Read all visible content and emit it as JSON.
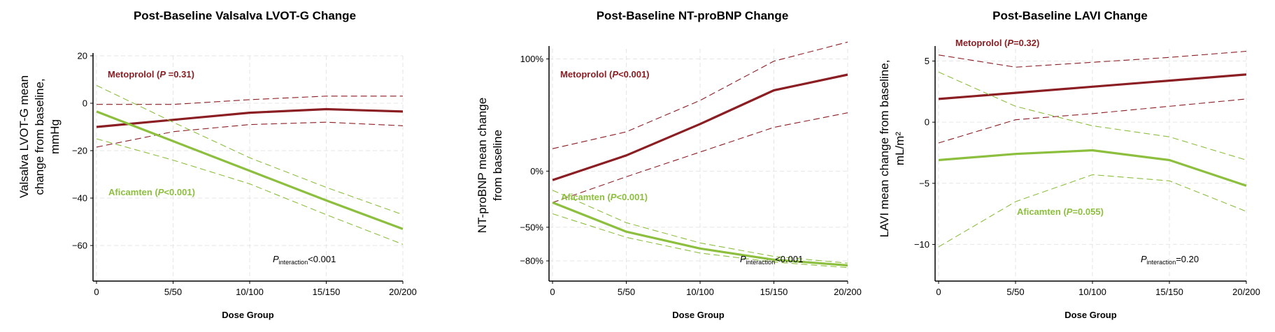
{
  "colors": {
    "metoprolol": "#8B1E23",
    "aficamten": "#8DBF3F"
  },
  "chart_data": [
    {
      "type": "line",
      "title": "Post-Baseline Valsalva LVOT-G Change",
      "ylabel_lines": [
        "Valsalva LVOT-G mean",
        "change from baseline,",
        "mmHg"
      ],
      "xlabel": "Dose Group",
      "categories": [
        "0",
        "5/50",
        "10/100",
        "15/150",
        "20/200"
      ],
      "ylim": [
        -75,
        20
      ],
      "yticks": [
        20,
        0,
        -20,
        -40,
        -60
      ],
      "ytick_labels": [
        "20",
        "0",
        "−20",
        "−40",
        "−60"
      ],
      "grid": true,
      "series": [
        {
          "name": "Metoprolol",
          "color": "#8B1E23",
          "label_prefix": "Metoprolol (",
          "label_p": "P",
          "label_suffix": " =0.31)",
          "values": [
            -10,
            -7,
            -4,
            -2.5,
            -3.5
          ],
          "ci_low": [
            -18.5,
            -12,
            -9,
            -8,
            -9.5
          ],
          "ci_high": [
            -0.5,
            -0.5,
            1.5,
            3,
            3
          ]
        },
        {
          "name": "Aficamten",
          "color": "#8DBF3F",
          "label_prefix": "Aficamten (",
          "label_p": "P",
          "label_suffix": "<0.001)",
          "values": [
            -3.5,
            -16,
            -28.5,
            -41,
            -53
          ],
          "ci_low": [
            -15,
            -24,
            -34,
            -47,
            -59.5
          ],
          "ci_high": [
            7.5,
            -8,
            -23,
            -35.5,
            -47
          ]
        }
      ],
      "p_interaction_label": "P",
      "p_interaction_sub": "interaction",
      "p_interaction_value": "<0.001"
    },
    {
      "type": "line",
      "title": "Post-Baseline NT-proBNP Change",
      "ylabel_lines": [
        "NT-proBNP mean change",
        "from baseline"
      ],
      "xlabel": "Dose Group",
      "categories": [
        "0",
        "5/50",
        "10/100",
        "15/150",
        "20/200"
      ],
      "ylim": [
        -98,
        109
      ],
      "yticks": [
        100,
        0,
        -50,
        -80
      ],
      "ytick_labels": [
        "100%",
        "0%",
        "−50%",
        "−80%"
      ],
      "grid": true,
      "series": [
        {
          "name": "Metoprolol",
          "color": "#8B1E23",
          "label_prefix": "Metoprolol (",
          "label_p": "P",
          "label_suffix": "<0.001)",
          "values": [
            -8,
            14,
            42,
            72,
            86
          ],
          "ci_low": [
            -28,
            -5,
            17,
            39,
            52
          ],
          "ci_high": [
            20,
            35,
            63,
            98,
            115
          ]
        },
        {
          "name": "Aficamten",
          "color": "#8DBF3F",
          "label_prefix": "Aficamten (",
          "label_p": "P",
          "label_suffix": "<0.001)",
          "values": [
            -28,
            -54,
            -69,
            -79,
            -84
          ],
          "ci_low": [
            -38,
            -59,
            -73,
            -81,
            -86
          ],
          "ci_high": [
            -17,
            -46,
            -64,
            -76,
            -82
          ]
        }
      ],
      "p_interaction_label": "P",
      "p_interaction_sub": "interaction",
      "p_interaction_value": "<0.001"
    },
    {
      "type": "line",
      "title": "Post-Baseline LAVI Change",
      "ylabel_lines": [
        "LAVI mean change from baseline,",
        "mL/m²"
      ],
      "xlabel": "Dose Group",
      "categories": [
        "0",
        "5/50",
        "10/100",
        "15/150",
        "20/200"
      ],
      "ylim": [
        -13,
        6
      ],
      "yticks": [
        5,
        0,
        -5,
        -10
      ],
      "ytick_labels": [
        "5",
        "0",
        "−5",
        "−10"
      ],
      "grid": true,
      "series": [
        {
          "name": "Metoprolol",
          "color": "#8B1E23",
          "label_prefix": "Metoprolol (",
          "label_p": "P",
          "label_suffix": "=0.32)",
          "values": [
            1.9,
            2.4,
            2.9,
            3.4,
            3.9
          ],
          "ci_low": [
            -1.7,
            0.2,
            0.7,
            1.3,
            1.9
          ],
          "ci_high": [
            5.5,
            4.5,
            4.9,
            5.3,
            5.8
          ]
        },
        {
          "name": "Aficamten",
          "color": "#8DBF3F",
          "label_prefix": "Aficamten (",
          "label_p": "P",
          "label_suffix": "=0.055)",
          "values": [
            -3.1,
            -2.6,
            -2.3,
            -3.1,
            -5.2
          ],
          "ci_low": [
            -10.2,
            -6.5,
            -4.3,
            -4.8,
            -7.3
          ],
          "ci_high": [
            4.1,
            1.3,
            -0.3,
            -1.2,
            -3.1
          ]
        }
      ],
      "p_interaction_label": "P",
      "p_interaction_sub": "interaction",
      "p_interaction_value": "=0.20"
    }
  ]
}
